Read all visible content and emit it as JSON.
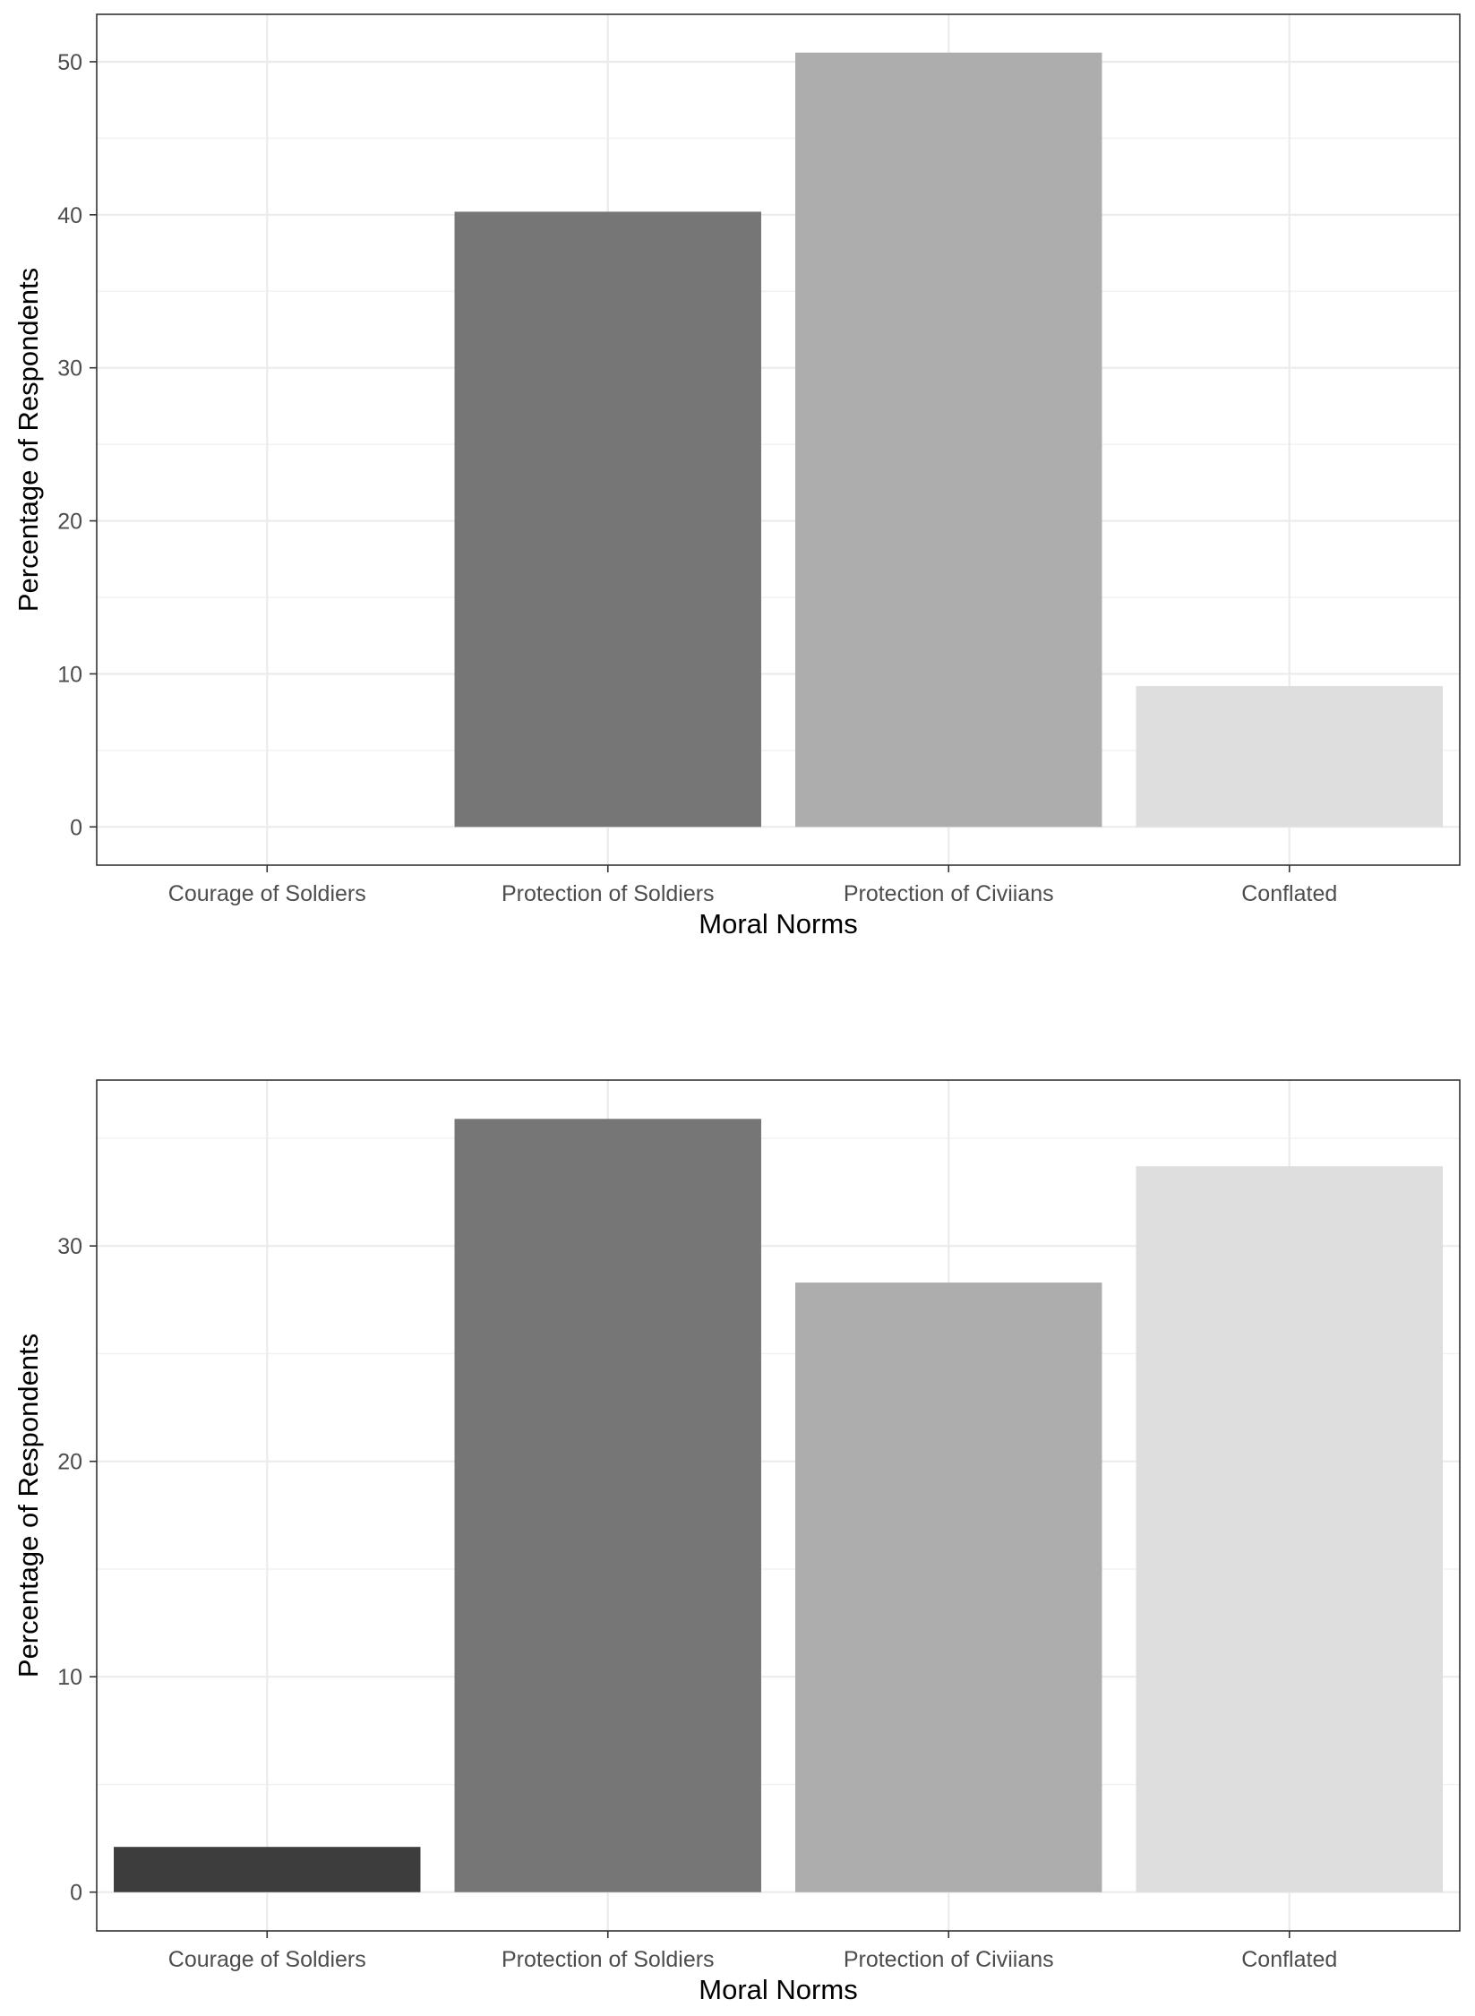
{
  "chart_data": [
    {
      "type": "bar",
      "title": "",
      "xlabel": "Moral Norms",
      "ylabel": "Percentage of Respondents",
      "categories": [
        "Courage of Soldiers",
        "Protection of Soldiers",
        "Protection of Civiians",
        "Conflated"
      ],
      "values": [
        0,
        40.2,
        50.6,
        9.2
      ],
      "colors": [
        "#3d3d3d",
        "#767676",
        "#adadad",
        "#dedede"
      ],
      "yticks": [
        0,
        10,
        20,
        30,
        40,
        50
      ],
      "ylim": [
        -2.5,
        53.1
      ],
      "grid": true,
      "legend": "none"
    },
    {
      "type": "bar",
      "title": "",
      "xlabel": "Moral Norms",
      "ylabel": "Percentage of Respondents",
      "categories": [
        "Courage of Soldiers",
        "Protection of Soldiers",
        "Protection of Civiians",
        "Conflated"
      ],
      "values": [
        2.1,
        35.9,
        28.3,
        33.7
      ],
      "colors": [
        "#3d3d3d",
        "#767676",
        "#adadad",
        "#dedede"
      ],
      "yticks": [
        0,
        10,
        20,
        30
      ],
      "ylim": [
        -1.8,
        37.7
      ],
      "grid": true,
      "legend": "none"
    }
  ]
}
